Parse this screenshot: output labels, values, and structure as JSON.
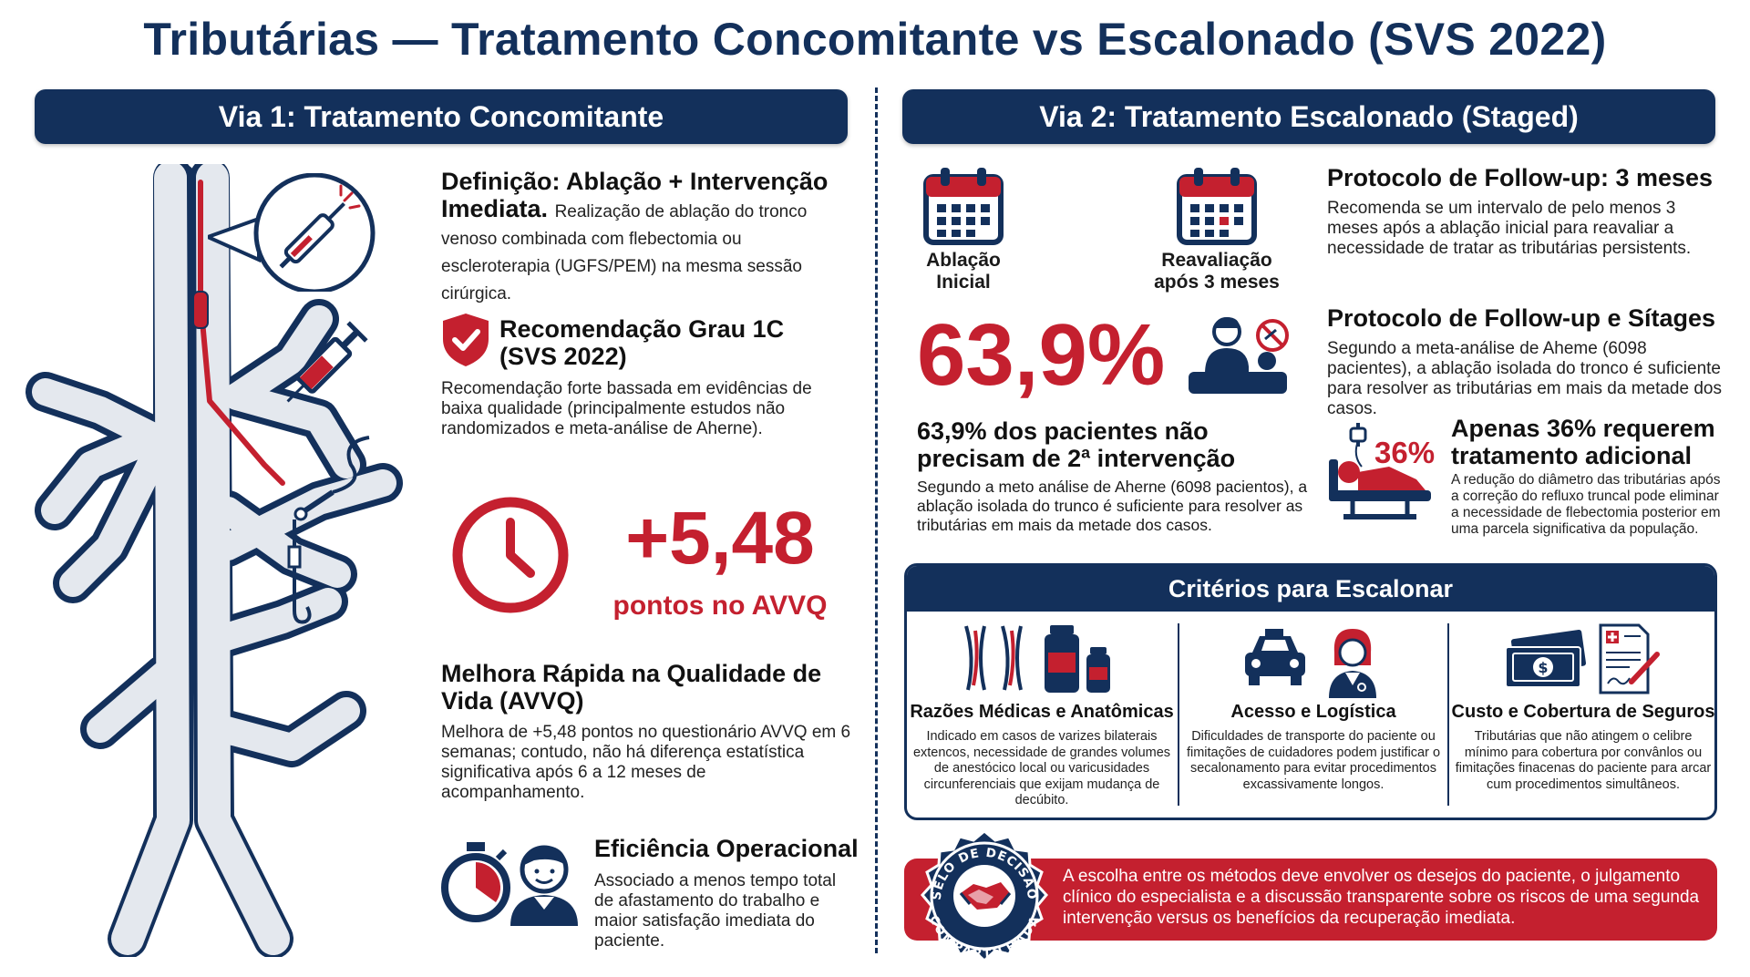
{
  "title": "Tributárias — Tratamento Concomitante vs Escalonado (SVS 2022)",
  "left": {
    "banner": "Via 1: Tratamento Concomitante",
    "definition": {
      "heading": "Definição: Ablação + Intervenção Imediata.",
      "text": "Realização de ablação do tronco venoso combinada com flebectomia ou escleroterapia (UGFS/PEM) na mesma sessão cirúrgica."
    },
    "recommendation": {
      "heading_line1": "Recomendação Grau 1C",
      "heading_line2": "(SVS 2022)",
      "text": "Recomendação forte bassada em evidências de baixa qualidade (principalmente estudos não randomizados e meta-análise de Aherne)."
    },
    "stat": {
      "value": "+5,48",
      "label": "pontos no AVVQ"
    },
    "quality": {
      "heading": "Melhora Rápida na Qualidade de Vida (AVVQ)",
      "text": "Melhora de +5,48 pontos no questionário AVVQ em 6 semanas; contudo, não há diferença estatística significativa após 6 a 12 meses de acompanhamento."
    },
    "efficiency": {
      "heading": "Eficiência Operacional",
      "text": "Associado a menos tempo total de afastamento do trabalho e maior satisfação imediata do paciente."
    }
  },
  "right": {
    "banner": "Via 2: Tratamento Escalonado (Staged)",
    "calendar1_line1": "Ablação",
    "calendar1_line2": "Inicial",
    "calendar2_line1": "Reavaliação",
    "calendar2_line2": "após 3 meses",
    "protocol1": {
      "heading": "Protocolo de Follow-up: 3 meses",
      "text": "Recomenda se um intervalo de pelo menos 3 meses após a ablação inicial para reavaliar a necessidade de tratar as tributárias persistents."
    },
    "protocol2": {
      "heading": "Protocolo de Follow-up e Sítages",
      "text": "Segundo a meta-análise de Aheme (6098 pacientes), a ablação isolada do tronco é suficiente para resolver as tributárias em mais da metade dos casos."
    },
    "stat": {
      "value": "63,9%",
      "heading_line1": "63,9% dos pacientes não",
      "heading_line2": "precisam de 2ª intervenção",
      "text": "Segundo a meto análise de Aherne (6098 pacientos), a ablação isolada do trunco é suficiente para resolver as tributárias em mais da metade dos casos."
    },
    "stat36": {
      "value": "36%",
      "heading_line1": "Apenas 36% requerem",
      "heading_line2": "tratamento adicional",
      "text": "A redução do diâmetro das tributárias após a correção do refluxo truncal pode eliminar a necessidade de flebectomia posterior em uma parcela significativa da população."
    },
    "criteria": {
      "banner": "Critérios para Escalonar",
      "items": [
        {
          "title": "Razões Médicas e Anatômicas",
          "text": "Indicado em casos de varizes bilaterais extencos, necessidade de grandes volumes de anestócico local ou varicusidades circunferenciais que exijam mudança de decúbito."
        },
        {
          "title": "Acesso e Logística",
          "text": "Dificuldades de transporte do paciente ou fimitações de cuidadores podem justificar o secalonamento para evitar procedimentos excassivamente longos."
        },
        {
          "title": "Custo e Cobertura de Seguros",
          "text": "Tributárias que não atingem o celibre mínimo para cobertura por convânlos ou fimitações finacenas do paciente para arcar cum procedimentos simultâneos."
        }
      ]
    },
    "seal": {
      "top": "SELO DE DECISÃO",
      "bottom": "COMPARTILHADA"
    },
    "footer": "A escolha entre os métodos deve envolver os desejos do paciente, o julgamento clínico do especialista e a discussão transparente sobre os riscos de uma segunda intervenção versus os benefícios da recuperação imediata."
  },
  "colors": {
    "navy": "#13305b",
    "red": "#c4202f",
    "vein_light": "#e4e8ee"
  },
  "icons": [
    "needle-detail-icon",
    "syringe-icon",
    "hook-icon",
    "shield-check-icon",
    "clock-icon",
    "stopwatch-icon",
    "patient-icon",
    "calendar-icon",
    "doctor-patient-icon",
    "hospital-bed-icon",
    "veins-icon",
    "medicine-bottles-icon",
    "car-icon",
    "nurse-icon",
    "money-icon",
    "document-icon",
    "handshake-icon"
  ]
}
